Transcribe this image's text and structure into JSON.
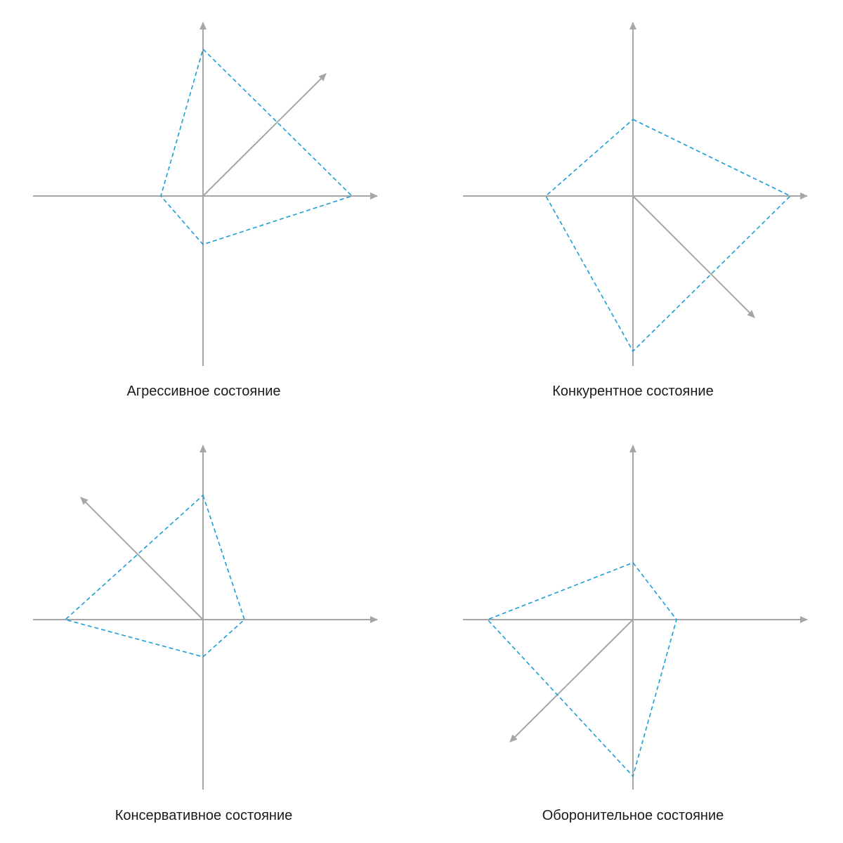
{
  "colors": {
    "axis": "#a6a6a6",
    "polygon": "#1a9fd6",
    "title": "#1a1a1a"
  },
  "panels": [
    {
      "title": "Агрессивное состояние",
      "diagonal_direction": "up-right"
    },
    {
      "title": "Конкурентное состояние",
      "diagonal_direction": "down-right"
    },
    {
      "title": "Консервативное состояние",
      "diagonal_direction": "up-left"
    },
    {
      "title": "Оборонительное состояние",
      "diagonal_direction": "down-left"
    }
  ]
}
